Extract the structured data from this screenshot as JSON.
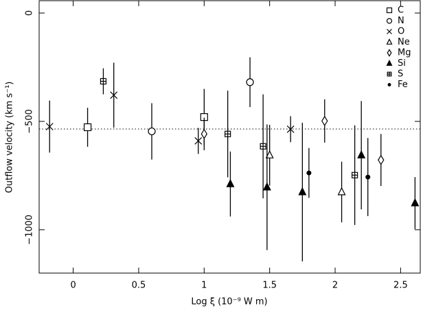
{
  "chart_data": {
    "type": "scatter",
    "x_label": "Log ξ (10⁻⁹ W m)",
    "y_label": "Outflow velocity (km s⁻¹)",
    "xlim": [
      -0.26,
      2.65
    ],
    "ylim": [
      -1200,
      57
    ],
    "xticks": [
      0,
      0.5,
      1,
      1.5,
      2,
      2.5
    ],
    "yticks": [
      {
        "value": 0,
        "label": "0"
      },
      {
        "value": -500,
        "label": "−500"
      },
      {
        "value": -1000,
        "label": "−1000"
      }
    ],
    "reference_line": -535,
    "legend_position": "upper right",
    "color": "#000000",
    "series": [
      {
        "name": "C",
        "marker": "square",
        "x": [
          0.11,
          1.0
        ],
        "values": [
          -527,
          -480
        ],
        "errors": [
          90,
          130
        ]
      },
      {
        "name": "N",
        "marker": "circle",
        "x": [
          0.6,
          1.35
        ],
        "values": [
          -546,
          -319
        ],
        "errors": [
          130,
          115
        ]
      },
      {
        "name": "O",
        "marker": "x",
        "x": [
          -0.18,
          0.31,
          0.955,
          1.66
        ],
        "values": [
          -524,
          -379,
          -590,
          -536
        ],
        "errors": [
          120,
          150,
          60,
          60
        ]
      },
      {
        "name": "Ne",
        "marker": "triangle",
        "x": [
          1.5,
          2.05
        ],
        "values": [
          -656,
          -826
        ],
        "errors": [
          140,
          140
        ]
      },
      {
        "name": "Mg",
        "marker": "diamond",
        "x": [
          1.0,
          1.92,
          2.35
        ],
        "values": [
          -558,
          -498,
          -678
        ],
        "errors": [
          75,
          100,
          120
        ]
      },
      {
        "name": "Si",
        "marker": "filled-triangle",
        "x": [
          1.2,
          1.48,
          1.75,
          2.2,
          2.61
        ],
        "values": [
          -789,
          -804,
          -826,
          -656,
          -877
        ],
        "errors": [
          150,
          290,
          320,
          250,
          120
        ]
      },
      {
        "name": "S",
        "marker": "cross-box",
        "x": [
          0.23,
          1.18,
          1.45,
          2.15
        ],
        "values": [
          -315,
          -558,
          -615,
          -748
        ],
        "errors": [
          60,
          200,
          240,
          230
        ]
      },
      {
        "name": "Fe",
        "marker": "dot",
        "x": [
          1.8,
          2.25
        ],
        "values": [
          -738,
          -757
        ],
        "errors": [
          115,
          180
        ]
      }
    ]
  }
}
